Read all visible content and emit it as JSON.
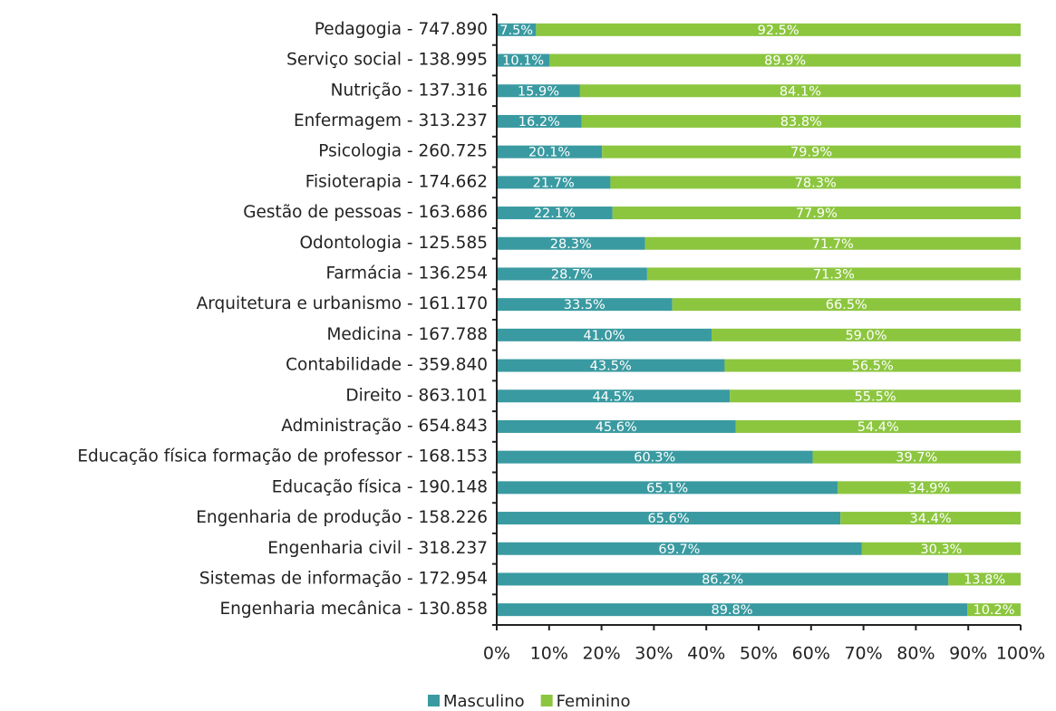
{
  "chart_data": {
    "type": "bar",
    "orientation": "horizontal",
    "stacked": true,
    "categories": [
      "Pedagogia - 747.890",
      "Serviço social - 138.995",
      "Nutrição - 137.316",
      "Enfermagem - 313.237",
      "Psicologia - 260.725",
      "Fisioterapia - 174.662",
      "Gestão de pessoas - 163.686",
      "Odontologia - 125.585",
      "Farmácia - 136.254",
      "Arquitetura e urbanismo - 161.170",
      "Medicina - 167.788",
      "Contabilidade - 359.840",
      "Direito - 863.101",
      "Administração - 654.843",
      "Educação física formação de professor - 168.153",
      "Educação física - 190.148",
      "Engenharia de produção - 158.226",
      "Engenharia civil - 318.237",
      "Sistemas de informação - 172.954",
      "Engenharia mecânica - 130.858"
    ],
    "series": [
      {
        "name": "Masculino",
        "color": "#3a9aa1",
        "values": [
          7.5,
          10.1,
          15.9,
          16.2,
          20.1,
          21.7,
          22.1,
          28.3,
          28.7,
          33.5,
          41.0,
          43.5,
          44.5,
          45.6,
          60.3,
          65.1,
          65.6,
          69.7,
          86.2,
          89.8
        ],
        "value_labels": [
          "7.5%",
          "10.1%",
          "15.9%",
          "16.2%",
          "20.1%",
          "21.7%",
          "22.1%",
          "28.3%",
          "28.7%",
          "33.5%",
          "41.0%",
          "43.5%",
          "44.5%",
          "45.6%",
          "60.3%",
          "65.1%",
          "65.6%",
          "69.7%",
          "86.2%",
          "89.8%"
        ]
      },
      {
        "name": "Feminino",
        "color": "#8cc63f",
        "values": [
          92.5,
          89.9,
          84.1,
          83.8,
          79.9,
          78.3,
          77.9,
          71.7,
          71.3,
          66.5,
          59.0,
          56.5,
          55.5,
          54.4,
          39.7,
          34.9,
          34.4,
          30.3,
          13.8,
          10.2
        ],
        "value_labels": [
          "92.5%",
          "89.9%",
          "84.1%",
          "83.8%",
          "79.9%",
          "78.3%",
          "77.9%",
          "71.7%",
          "71.3%",
          "66.5%",
          "59.0%",
          "56.5%",
          "55.5%",
          "54.4%",
          "39.7%",
          "34.9%",
          "34.4%",
          "30.3%",
          "13.8%",
          "10.2%"
        ]
      }
    ],
    "xlim": [
      0,
      100
    ],
    "xticks": [
      {
        "value": 0,
        "label": "0%"
      },
      {
        "value": 10,
        "label": "10%"
      },
      {
        "value": 20,
        "label": "20%"
      },
      {
        "value": 30,
        "label": "30%"
      },
      {
        "value": 40,
        "label": "40%"
      },
      {
        "value": 50,
        "label": "50%"
      },
      {
        "value": 60,
        "label": "60%"
      },
      {
        "value": 70,
        "label": "70%"
      },
      {
        "value": 80,
        "label": "80%"
      },
      {
        "value": 90,
        "label": "90%"
      },
      {
        "value": 100,
        "label": "100%"
      }
    ],
    "legend": "bottom"
  }
}
